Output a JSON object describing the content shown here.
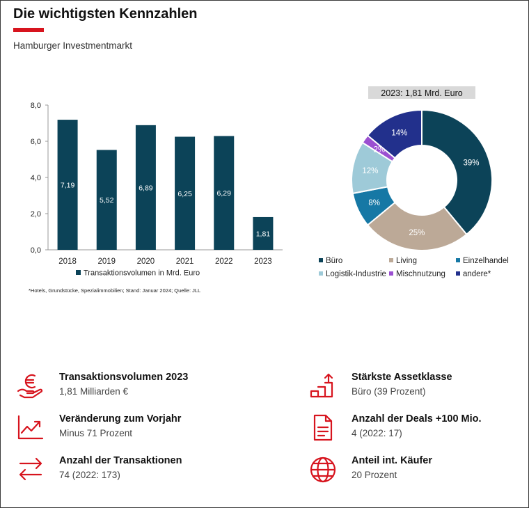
{
  "header": {
    "title": "Die wichtigsten Kennzahlen",
    "subtitle": "Hamburger Investmentmarkt"
  },
  "footnote": "*Hotels, Grundstücke, Spezialimmobilien; Stand: Januar 2024; Quelle: JLL",
  "colors": {
    "accent": "#d7141e",
    "bar": "#0c4358"
  },
  "chart_data": [
    {
      "type": "bar",
      "categories": [
        "2018",
        "2019",
        "2020",
        "2021",
        "2022",
        "2023"
      ],
      "series": [
        {
          "name": "Transaktionsvolumen in Mrd. Euro",
          "values": [
            7.19,
            5.52,
            6.89,
            6.25,
            6.29,
            1.81
          ],
          "labels": [
            "7,19",
            "5,52",
            "6,89",
            "6,25",
            "6,29",
            "1,81"
          ]
        }
      ],
      "ylim": [
        0,
        8
      ],
      "yticks": [
        "0,0",
        "2,0",
        "4,0",
        "6,0",
        "8,0"
      ],
      "legend_position": "bottom",
      "grid": false
    },
    {
      "type": "pie",
      "variant": "donut",
      "title": "2023: 1,81 Mrd. Euro",
      "slices": [
        {
          "name": "Büro",
          "value": 39,
          "label": "39%",
          "color": "#0c4358"
        },
        {
          "name": "Living",
          "value": 25,
          "label": "25%",
          "color": "#bca997"
        },
        {
          "name": "Einzelhandel",
          "value": 8,
          "label": "8%",
          "color": "#1678a5"
        },
        {
          "name": "Logistik-Industrie",
          "value": 12,
          "label": "12%",
          "color": "#9ecad8"
        },
        {
          "name": "Mischnutzung",
          "value": 2,
          "label": "2%",
          "color": "#9b4fd1"
        },
        {
          "name": "andere*",
          "value": 14,
          "label": "14%",
          "color": "#22308c"
        }
      ],
      "legend_position": "bottom"
    }
  ],
  "kpis": [
    {
      "icon": "euro-hand-icon",
      "title": "Transaktionsvolumen 2023",
      "value": "1,81 Milliarden €"
    },
    {
      "icon": "trend-chart-icon",
      "title": "Veränderung zum Vorjahr",
      "value": "Minus 71 Prozent"
    },
    {
      "icon": "exchange-arrows-icon",
      "title": "Anzahl der Transaktionen",
      "value": "74 (2022: 173)"
    },
    {
      "icon": "growth-bars-icon",
      "title": "Stärkste Assetklasse",
      "value": "Büro (39 Prozent)"
    },
    {
      "icon": "document-icon",
      "title": "Anzahl der Deals +100 Mio.",
      "value": "4 (2022: 17)"
    },
    {
      "icon": "globe-icon",
      "title": "Anteil int. Käufer",
      "value": "20 Prozent"
    }
  ]
}
